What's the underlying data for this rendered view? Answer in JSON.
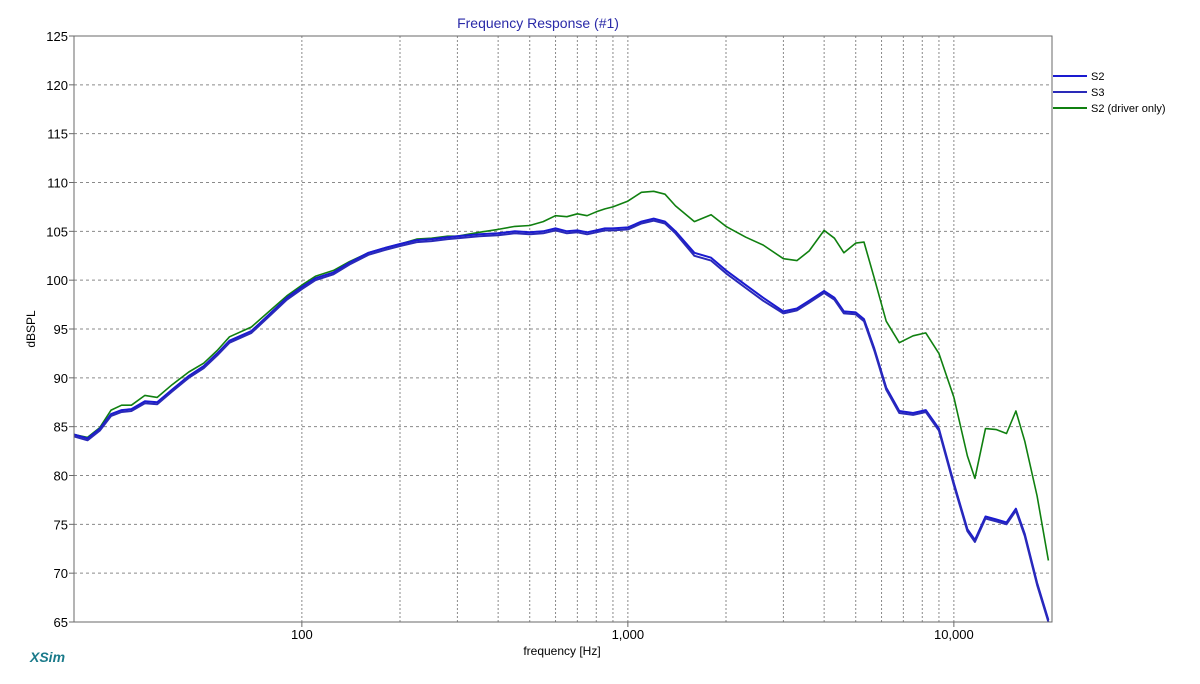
{
  "app": {
    "brand": "XSim"
  },
  "colors": {
    "s2": "#1a1ad0",
    "s3": "#2a2ab8",
    "driver": "#108010",
    "title": "#2a2aa8",
    "brand": "#1a7a8a",
    "grid": "#8a8a8a"
  },
  "chart_data": {
    "type": "line",
    "title": "Frequency Response (#1)",
    "xlabel": "frequency [Hz]",
    "ylabel": "dBSPL",
    "x_scale": "log",
    "xlim": [
      20,
      20000
    ],
    "ylim": [
      65,
      125
    ],
    "y_ticks": [
      65,
      70,
      75,
      80,
      85,
      90,
      95,
      100,
      105,
      110,
      115,
      120,
      125
    ],
    "x_tick_labels": [
      {
        "value": 100,
        "label": "100"
      },
      {
        "value": 1000,
        "label": "1,000"
      },
      {
        "value": 10000,
        "label": "10,000"
      }
    ],
    "x_gridlines": [
      100,
      200,
      300,
      400,
      500,
      600,
      700,
      800,
      900,
      1000,
      2000,
      3000,
      4000,
      5000,
      6000,
      7000,
      8000,
      9000,
      10000
    ],
    "grid": true,
    "legend_position": "right",
    "series": [
      {
        "name": "S2",
        "color": "#1a1ad0",
        "x": [
          20,
          22,
          24,
          26,
          28,
          30,
          33,
          36,
          40,
          45,
          50,
          55,
          60,
          70,
          80,
          90,
          100,
          110,
          125,
          140,
          160,
          180,
          200,
          225,
          250,
          280,
          300,
          350,
          400,
          450,
          500,
          550,
          600,
          650,
          700,
          750,
          800,
          850,
          900,
          1000,
          1100,
          1200,
          1300,
          1400,
          1600,
          1800,
          2000,
          2300,
          2600,
          3000,
          3300,
          3600,
          4000,
          4300,
          4600,
          5000,
          5300,
          5700,
          6200,
          6800,
          7500,
          8200,
          9000,
          10000,
          11000,
          11600,
          12500,
          13500,
          14500,
          15500,
          16500,
          18000,
          19500
        ],
        "y": [
          84.2,
          83.8,
          84.8,
          86.3,
          86.7,
          86.8,
          87.6,
          87.5,
          88.8,
          90.2,
          91.2,
          92.5,
          93.8,
          94.8,
          96.6,
          98.2,
          99.3,
          100.2,
          100.8,
          101.8,
          102.8,
          103.3,
          103.7,
          104.1,
          104.2,
          104.4,
          104.5,
          104.7,
          104.8,
          105.0,
          104.9,
          105.0,
          105.3,
          105.0,
          105.1,
          104.9,
          105.1,
          105.3,
          105.3,
          105.4,
          106.0,
          106.3,
          106.0,
          105.0,
          102.8,
          102.3,
          101.0,
          99.5,
          98.2,
          96.8,
          97.1,
          97.9,
          98.9,
          98.2,
          96.8,
          96.7,
          96.0,
          93.0,
          89.0,
          86.6,
          86.4,
          86.7,
          84.8,
          79.2,
          74.5,
          73.4,
          75.8,
          75.5,
          75.2,
          76.6,
          74.0,
          69.0,
          65.2
        ]
      },
      {
        "name": "S3",
        "color": "#2a2ab8",
        "x": [
          20,
          22,
          24,
          26,
          28,
          30,
          33,
          36,
          40,
          45,
          50,
          55,
          60,
          70,
          80,
          90,
          100,
          110,
          125,
          140,
          160,
          180,
          200,
          225,
          250,
          280,
          300,
          350,
          400,
          450,
          500,
          550,
          600,
          650,
          700,
          750,
          800,
          850,
          900,
          1000,
          1100,
          1200,
          1300,
          1400,
          1600,
          1800,
          2000,
          2300,
          2600,
          3000,
          3300,
          3600,
          4000,
          4300,
          4600,
          5000,
          5300,
          5700,
          6200,
          6800,
          7500,
          8200,
          9000,
          10000,
          11000,
          11600,
          12500,
          13500,
          14500,
          15500,
          16500,
          18000,
          19500
        ],
        "y": [
          84.0,
          83.6,
          84.6,
          86.1,
          86.5,
          86.6,
          87.4,
          87.3,
          88.6,
          90.0,
          91.0,
          92.3,
          93.6,
          94.6,
          96.4,
          98.0,
          99.1,
          100.0,
          100.6,
          101.6,
          102.6,
          103.1,
          103.5,
          103.9,
          104.0,
          104.2,
          104.3,
          104.5,
          104.6,
          104.8,
          104.7,
          104.8,
          105.1,
          104.8,
          104.9,
          104.7,
          104.9,
          105.1,
          105.1,
          105.2,
          105.8,
          106.1,
          105.8,
          104.8,
          102.5,
          102.0,
          100.7,
          99.2,
          97.9,
          96.6,
          96.9,
          97.7,
          98.7,
          98.0,
          96.6,
          96.5,
          95.8,
          92.8,
          88.8,
          86.4,
          86.2,
          86.5,
          84.6,
          79.0,
          74.3,
          73.2,
          75.6,
          75.3,
          75.0,
          76.4,
          73.8,
          68.8,
          65.0
        ]
      },
      {
        "name": "S2 (driver only)",
        "color": "#108010",
        "x": [
          20,
          22,
          24,
          26,
          28,
          30,
          33,
          36,
          40,
          45,
          50,
          55,
          60,
          70,
          80,
          90,
          100,
          110,
          125,
          140,
          160,
          180,
          200,
          225,
          250,
          280,
          300,
          350,
          400,
          450,
          500,
          550,
          600,
          650,
          700,
          750,
          800,
          850,
          900,
          1000,
          1100,
          1200,
          1300,
          1400,
          1600,
          1800,
          2000,
          2300,
          2600,
          3000,
          3300,
          3600,
          4000,
          4300,
          4600,
          5000,
          5300,
          5700,
          6200,
          6800,
          7500,
          8200,
          9000,
          10000,
          11000,
          11600,
          12500,
          13500,
          14500,
          15500,
          16500,
          18000,
          19500
        ],
        "y": [
          84.2,
          83.9,
          84.9,
          86.7,
          87.2,
          87.2,
          88.2,
          88.0,
          89.3,
          90.6,
          91.5,
          92.8,
          94.2,
          95.2,
          96.9,
          98.4,
          99.5,
          100.4,
          101.0,
          101.9,
          102.8,
          103.3,
          103.7,
          104.2,
          104.3,
          104.5,
          104.5,
          104.9,
          105.2,
          105.5,
          105.6,
          106.0,
          106.6,
          106.5,
          106.8,
          106.6,
          107.0,
          107.3,
          107.5,
          108.1,
          109.0,
          109.1,
          108.8,
          107.6,
          106.0,
          106.7,
          105.5,
          104.4,
          103.6,
          102.2,
          102.0,
          103.0,
          105.1,
          104.3,
          102.8,
          103.8,
          103.9,
          100.2,
          95.8,
          93.6,
          94.3,
          94.6,
          92.5,
          88.0,
          82.0,
          79.7,
          84.8,
          84.7,
          84.3,
          86.6,
          83.5,
          77.9,
          71.3
        ]
      }
    ]
  }
}
